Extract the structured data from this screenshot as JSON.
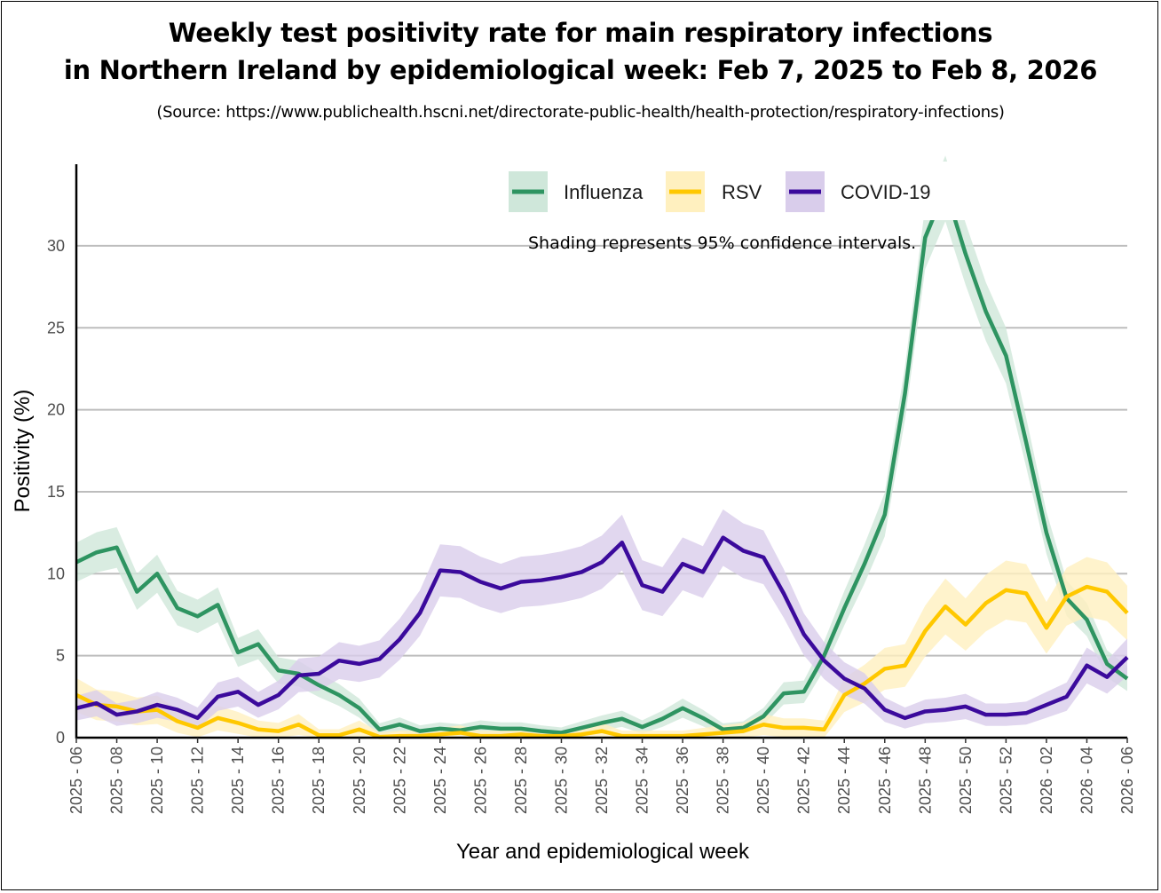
{
  "title_line1": "Weekly test positivity rate for main respiratory infections",
  "title_line2": "in Northern Ireland by epidemiological week: Feb 7, 2025 to Feb 8, 2026",
  "source": "(Source: https://www.publichealth.hscni.net/directorate-public-health/health-protection/respiratory-infections)",
  "chart_data": {
    "type": "line",
    "title": "Weekly test positivity rate for main respiratory infections in Northern Ireland by epidemiological week: Feb 7, 2025 to Feb 8, 2026",
    "xlabel": "Year and epidemiological week",
    "ylabel": "Positivity (%)",
    "ylim": [
      0,
      35
    ],
    "yticks": [
      0,
      5,
      10,
      15,
      20,
      25,
      30
    ],
    "grid": true,
    "legend_placement": "top-right",
    "annotation": "Shading represents 95% confidence intervals.",
    "x": [
      "2025 - 06",
      "2025 - 07",
      "2025 - 08",
      "2025 - 09",
      "2025 - 10",
      "2025 - 11",
      "2025 - 12",
      "2025 - 13",
      "2025 - 14",
      "2025 - 15",
      "2025 - 16",
      "2025 - 17",
      "2025 - 18",
      "2025 - 19",
      "2025 - 20",
      "2025 - 21",
      "2025 - 22",
      "2025 - 23",
      "2025 - 24",
      "2025 - 25",
      "2025 - 26",
      "2025 - 27",
      "2025 - 28",
      "2025 - 29",
      "2025 - 30",
      "2025 - 31",
      "2025 - 32",
      "2025 - 33",
      "2025 - 34",
      "2025 - 35",
      "2025 - 36",
      "2025 - 37",
      "2025 - 38",
      "2025 - 39",
      "2025 - 40",
      "2025 - 41",
      "2025 - 42",
      "2025 - 43",
      "2025 - 44",
      "2025 - 45",
      "2025 - 46",
      "2025 - 47",
      "2025 - 48",
      "2025 - 49",
      "2025 - 50",
      "2025 - 51",
      "2025 - 52",
      "2026 - 01",
      "2026 - 02",
      "2026 - 03",
      "2026 - 04",
      "2026 - 05",
      "2026 - 06"
    ],
    "xtick_labels": [
      "2025 - 06",
      "2025 - 08",
      "2025 - 10",
      "2025 - 12",
      "2025 - 14",
      "2025 - 16",
      "2025 - 18",
      "2025 - 20",
      "2025 - 22",
      "2025 - 24",
      "2025 - 26",
      "2025 - 28",
      "2025 - 30",
      "2025 - 32",
      "2025 - 34",
      "2025 - 36",
      "2025 - 38",
      "2025 - 40",
      "2025 - 42",
      "2025 - 44",
      "2025 - 46",
      "2025 - 48",
      "2025 - 50",
      "2025 - 52",
      "2026 - 02",
      "2026 - 04",
      "2026 - 06"
    ],
    "series": [
      {
        "name": "Influenza",
        "color": "#2e9461",
        "band_color": "#cfe7da",
        "ci_scale": 0.32,
        "values": [
          10.7,
          11.3,
          11.6,
          8.9,
          10.0,
          7.9,
          7.4,
          8.1,
          5.2,
          5.7,
          4.1,
          3.9,
          3.2,
          2.6,
          1.8,
          0.5,
          0.8,
          0.4,
          0.55,
          0.45,
          0.65,
          0.55,
          0.55,
          0.4,
          0.3,
          0.6,
          0.9,
          1.15,
          0.65,
          1.15,
          1.8,
          1.2,
          0.5,
          0.6,
          1.3,
          2.7,
          2.8,
          5.0,
          7.9,
          10.6,
          13.6,
          21.0,
          30.5,
          33.5,
          29.5,
          26.0,
          23.3,
          18.0,
          12.5,
          8.5,
          7.2,
          4.5,
          3.6
        ]
      },
      {
        "name": "RSV",
        "color": "#ffc800",
        "band_color": "#fff0bf",
        "ci_scale": 0.55,
        "values": [
          2.6,
          2.0,
          1.9,
          1.6,
          1.7,
          1.0,
          0.6,
          1.2,
          0.9,
          0.5,
          0.4,
          0.8,
          0.15,
          0.15,
          0.5,
          0.05,
          0.1,
          0.1,
          0.2,
          0.3,
          0.1,
          0.1,
          0.2,
          0.1,
          0.1,
          0.2,
          0.4,
          0.1,
          0.1,
          0.1,
          0.1,
          0.2,
          0.3,
          0.4,
          0.8,
          0.6,
          0.6,
          0.5,
          2.6,
          3.3,
          4.2,
          4.4,
          6.5,
          8.0,
          6.9,
          8.2,
          9.0,
          8.8,
          6.7,
          8.6,
          9.2,
          8.9,
          7.6
        ]
      },
      {
        "name": "COVID-19",
        "color": "#3b0a9c",
        "band_color": "#d9cdeb",
        "ci_scale": 0.45,
        "values": [
          1.8,
          2.1,
          1.4,
          1.6,
          2.0,
          1.7,
          1.2,
          2.5,
          2.8,
          2.0,
          2.6,
          3.8,
          3.9,
          4.7,
          4.5,
          4.8,
          6.0,
          7.6,
          10.2,
          10.1,
          9.5,
          9.1,
          9.5,
          9.6,
          9.8,
          10.1,
          10.7,
          11.9,
          9.3,
          8.9,
          10.6,
          10.1,
          12.2,
          11.4,
          11.0,
          8.8,
          6.3,
          4.7,
          3.6,
          3.0,
          1.7,
          1.2,
          1.6,
          1.7,
          1.9,
          1.4,
          1.4,
          1.5,
          2.0,
          2.5,
          4.4,
          3.7,
          4.9
        ]
      }
    ]
  }
}
